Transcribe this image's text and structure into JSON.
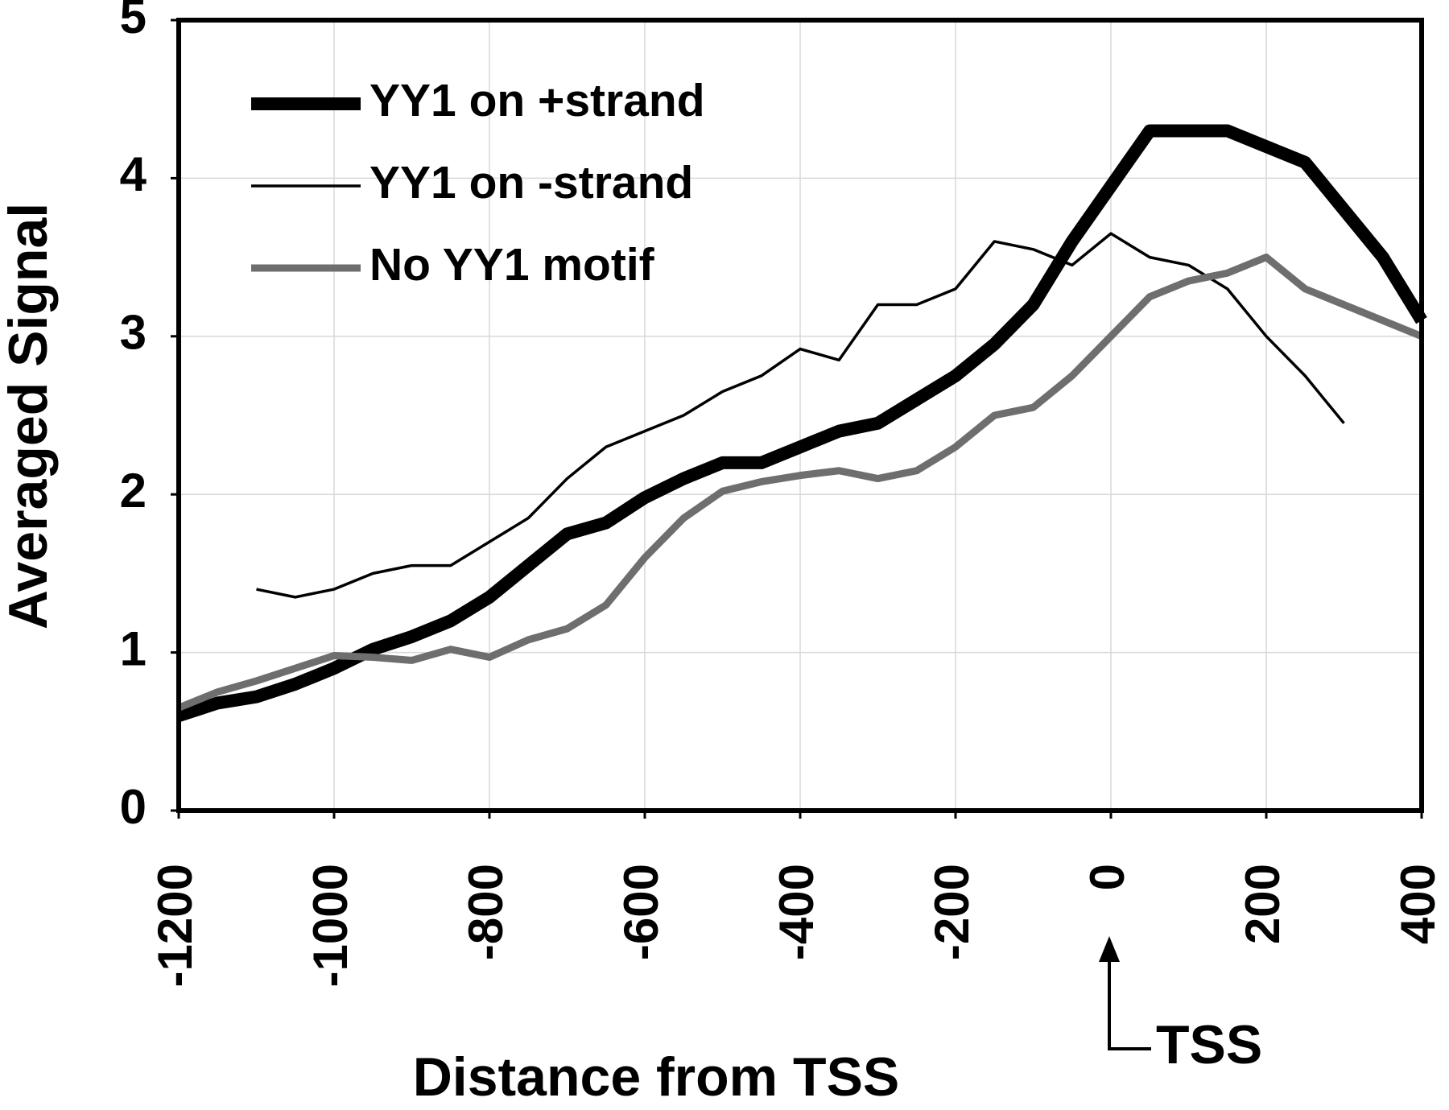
{
  "chart_data": {
    "type": "line",
    "x_label": "Distance from TSS",
    "y_label": "Averaged Signal",
    "annotation": "TSS",
    "x": [
      -1200,
      -1150,
      -1100,
      -1050,
      -1000,
      -950,
      -900,
      -850,
      -800,
      -750,
      -700,
      -650,
      -600,
      -550,
      -500,
      -450,
      -400,
      -350,
      -300,
      -250,
      -200,
      -150,
      -100,
      -50,
      0,
      50,
      100,
      150,
      200,
      250,
      300,
      350,
      400
    ],
    "series": [
      {
        "name": "YY1 on +strand",
        "color": "#000000",
        "line_width": 16,
        "values": [
          0.6,
          0.68,
          0.72,
          0.8,
          0.9,
          1.02,
          1.1,
          1.2,
          1.35,
          1.55,
          1.75,
          1.82,
          1.98,
          2.1,
          2.2,
          2.2,
          2.3,
          2.4,
          2.45,
          2.6,
          2.75,
          2.95,
          3.2,
          3.6,
          3.95,
          4.3,
          4.3,
          4.3,
          4.2,
          4.1,
          3.8,
          3.5,
          3.1
        ]
      },
      {
        "name": "YY1 on -strand",
        "color": "#000000",
        "line_width": 3.5,
        "values": [
          null,
          null,
          1.4,
          1.35,
          1.4,
          1.5,
          1.55,
          1.55,
          1.7,
          1.85,
          2.1,
          2.3,
          2.4,
          2.5,
          2.65,
          2.75,
          2.92,
          2.85,
          3.2,
          3.2,
          3.3,
          3.6,
          3.55,
          3.45,
          3.65,
          3.5,
          3.45,
          3.3,
          3.0,
          2.75,
          2.45,
          null,
          null
        ]
      },
      {
        "name": "No YY1 motif",
        "color": "#6e6e6e",
        "line_width": 9,
        "values": [
          0.65,
          0.75,
          0.82,
          0.9,
          0.98,
          0.97,
          0.95,
          1.02,
          0.97,
          1.08,
          1.15,
          1.3,
          1.6,
          1.85,
          2.02,
          2.08,
          2.12,
          2.15,
          2.1,
          2.15,
          2.3,
          2.5,
          2.55,
          2.75,
          3.0,
          3.25,
          3.35,
          3.4,
          3.5,
          3.3,
          3.2,
          3.1,
          3.0
        ]
      }
    ],
    "xlim": [
      -1200,
      400
    ],
    "xticks": [
      -1200,
      -1000,
      -800,
      -600,
      -400,
      -200,
      0,
      200,
      400
    ],
    "ylim": [
      0,
      5
    ],
    "yticks": [
      0,
      1,
      2,
      3,
      4,
      5
    ],
    "grid": true,
    "legend": "upper left"
  }
}
